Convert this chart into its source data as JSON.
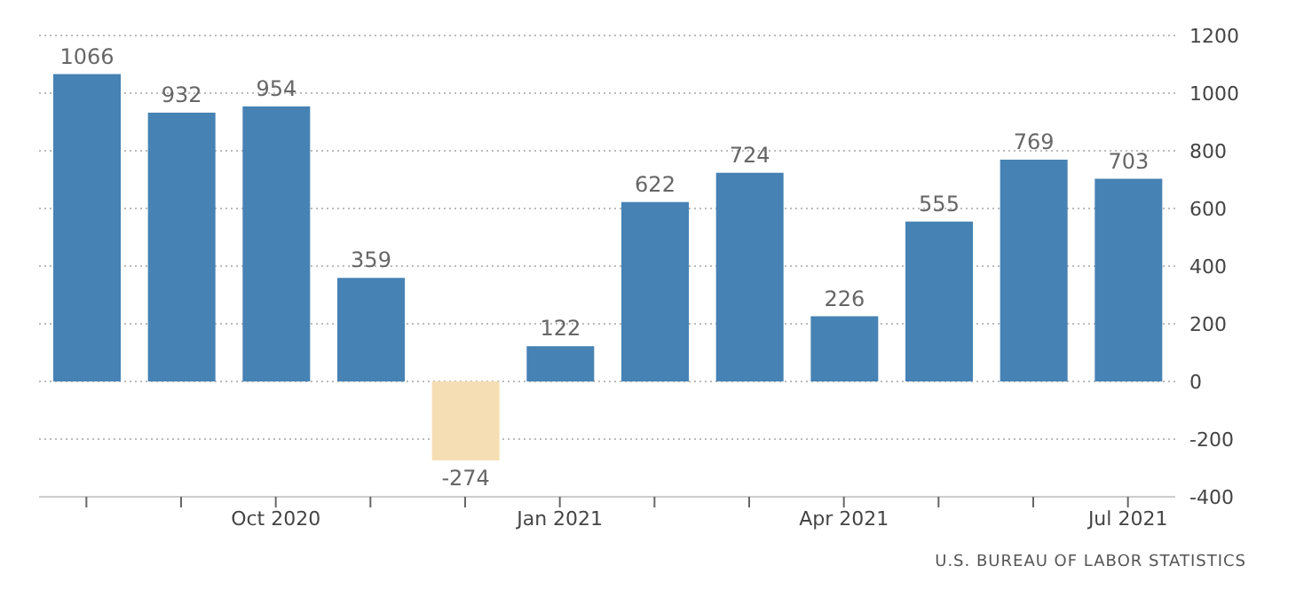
{
  "chart_data": {
    "type": "bar",
    "categories": [
      null,
      null,
      "Oct 2020",
      null,
      null,
      "Jan 2021",
      null,
      null,
      "Apr 2021",
      null,
      null,
      "Jul 2021"
    ],
    "values": [
      1066,
      932,
      954,
      359,
      -274,
      122,
      622,
      724,
      226,
      555,
      769,
      703
    ],
    "colors": [
      "#4682b4",
      "#4682b4",
      "#4682b4",
      "#4682b4",
      "#f5deb3",
      "#4682b4",
      "#4682b4",
      "#4682b4",
      "#4682b4",
      "#4682b4",
      "#4682b4",
      "#4682b4"
    ],
    "ylim": [
      -400,
      1200
    ],
    "yticks": [
      -400,
      -200,
      0,
      200,
      400,
      600,
      800,
      1000,
      1200
    ],
    "grid": "y",
    "data_labels": true,
    "annotations": [
      "U.S. BUREAU OF LABOR STATISTICS"
    ]
  }
}
